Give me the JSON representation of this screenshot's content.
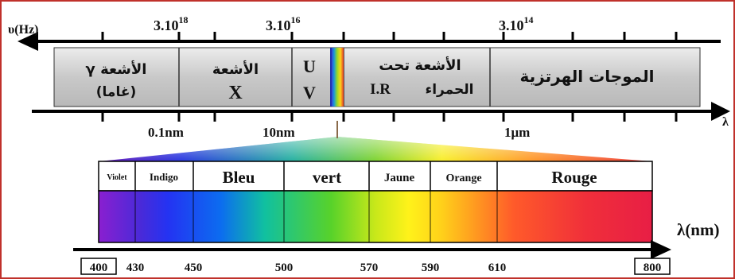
{
  "top": {
    "nu_label": "υ(Hz)",
    "freq_labels": [
      {
        "base": "3.10",
        "exp": "18"
      },
      {
        "base": "3.10",
        "exp": "16"
      },
      {
        "base": "3.10",
        "exp": "14"
      }
    ],
    "lambda_label": "λ",
    "wave_labels": [
      "0.1nm",
      "10nm",
      "1μm"
    ],
    "regions": [
      {
        "line1": "الأشعة γ",
        "line2": "(غاما)"
      },
      {
        "line1": "الأشعة",
        "line2": "X"
      },
      {
        "line1": "U",
        "line2": "V"
      },
      {
        "line1": "الأشعة تحت",
        "line2_ar": "الحمراء",
        "line2_lat": "I.R"
      },
      {
        "line1": "الموجات الهرتزية"
      }
    ]
  },
  "visible": {
    "colors": [
      "Violet",
      "Indigo",
      "Bleu",
      "vert",
      "Jaune",
      "Orange",
      "Rouge"
    ],
    "axis_label": "λ(nm)",
    "ticks": [
      "400",
      "430",
      "450",
      "500",
      "570",
      "590",
      "610",
      "800"
    ]
  },
  "palette": {
    "frame": "#c0312b",
    "band_gray": "#cfcfcf",
    "axis": "#000000"
  }
}
